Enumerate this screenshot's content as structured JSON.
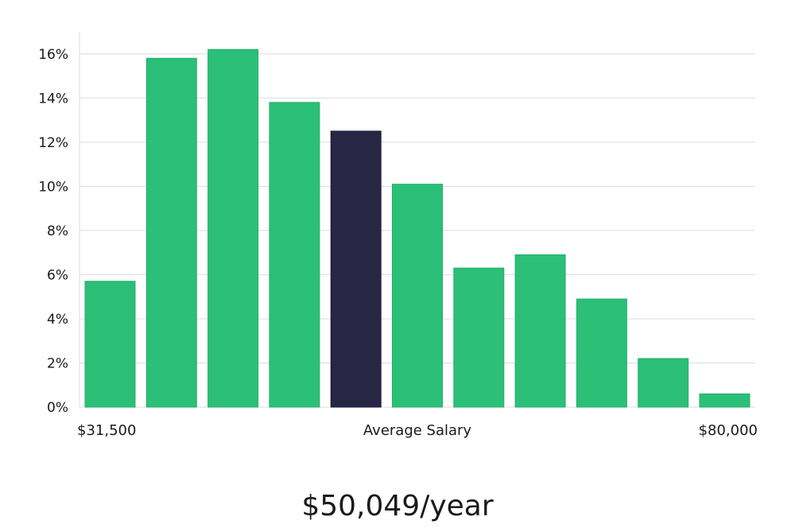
{
  "chart_data": {
    "type": "bar",
    "values": [
      5.7,
      15.8,
      16.2,
      13.8,
      12.5,
      10.1,
      6.3,
      6.9,
      4.9,
      2.2,
      0.6
    ],
    "highlight_index": 4,
    "ylim": [
      0,
      17
    ],
    "yticks": [
      0,
      2,
      4,
      6,
      8,
      10,
      12,
      14,
      16
    ],
    "ytick_suffix": "%",
    "grid": true,
    "x_left_label": "$31,500",
    "x_center_label": "Average Salary",
    "x_right_label": "$80,000",
    "bar_color": "#2bbf78",
    "highlight_color": "#282645",
    "grid_color": "#d9dde1"
  },
  "summary": {
    "average_salary": "$50,049/year"
  }
}
